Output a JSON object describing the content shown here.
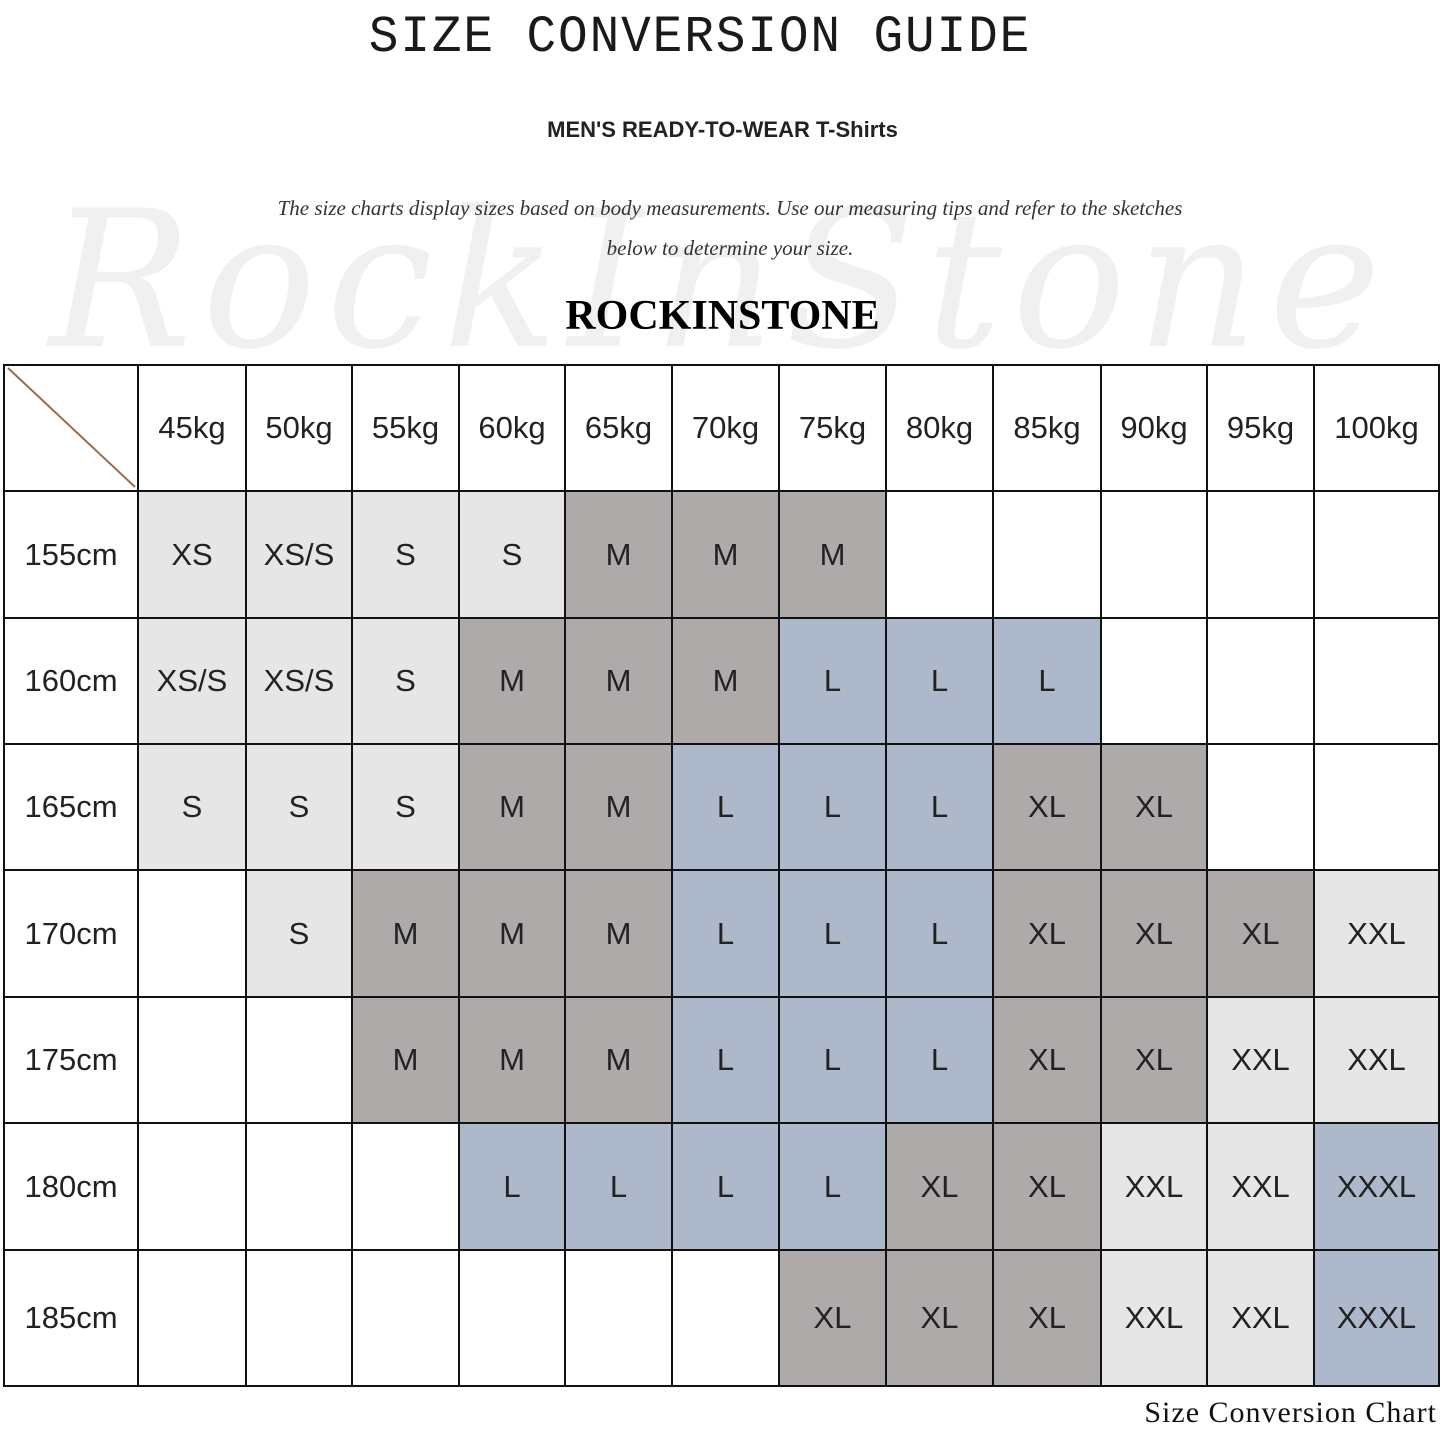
{
  "title": "SIZE CONVERSION GUIDE",
  "subtitle": "MEN'S READY-TO-WEAR T-Shirts",
  "description_line1": "The size charts display sizes based on body measurements. Use our measuring tips and refer to the sketches",
  "description_line2": "below to determine your size.",
  "brand": "ROCKINSTONE",
  "watermark": "RockInStone",
  "caption": "Size Conversion Chart",
  "colors": {
    "light_gray": "#e6e6e6",
    "dark_gray": "#aeaaaa",
    "blue": "#adb9ca",
    "diagonal": "#9b6a45"
  },
  "chart_data": {
    "type": "table",
    "columns": [
      "45kg",
      "50kg",
      "55kg",
      "60kg",
      "65kg",
      "70kg",
      "75kg",
      "80kg",
      "85kg",
      "90kg",
      "95kg",
      "100kg"
    ],
    "rows": [
      "155cm",
      "160cm",
      "165cm",
      "170cm",
      "175cm",
      "180cm",
      "185cm"
    ],
    "cells": [
      [
        "XS",
        "XS/S",
        "S",
        "S",
        "M",
        "M",
        "M",
        "",
        "",
        "",
        "",
        ""
      ],
      [
        "XS/S",
        "XS/S",
        "S",
        "M",
        "M",
        "M",
        "L",
        "L",
        "L",
        "",
        "",
        ""
      ],
      [
        "S",
        "S",
        "S",
        "M",
        "M",
        "L",
        "L",
        "L",
        "XL",
        "XL",
        "",
        ""
      ],
      [
        "",
        "S",
        "M",
        "M",
        "M",
        "L",
        "L",
        "L",
        "XL",
        "XL",
        "XL",
        "XXL"
      ],
      [
        "",
        "",
        "M",
        "M",
        "M",
        "L",
        "L",
        "L",
        "XL",
        "XL",
        "XXL",
        "XXL"
      ],
      [
        "",
        "",
        "",
        "L",
        "L",
        "L",
        "L",
        "XL",
        "XL",
        "XXL",
        "XXL",
        "XXXL"
      ],
      [
        "",
        "",
        "",
        "",
        "",
        "",
        "XL",
        "XL",
        "XL",
        "XXL",
        "XXL",
        "XXXL"
      ]
    ],
    "size_colors": {
      "XS": "light_gray",
      "XS/S": "light_gray",
      "S": "light_gray",
      "M": "dark_gray",
      "L": "blue",
      "XL": "dark_gray",
      "XXL": "light_gray",
      "XXXL": "blue"
    }
  }
}
